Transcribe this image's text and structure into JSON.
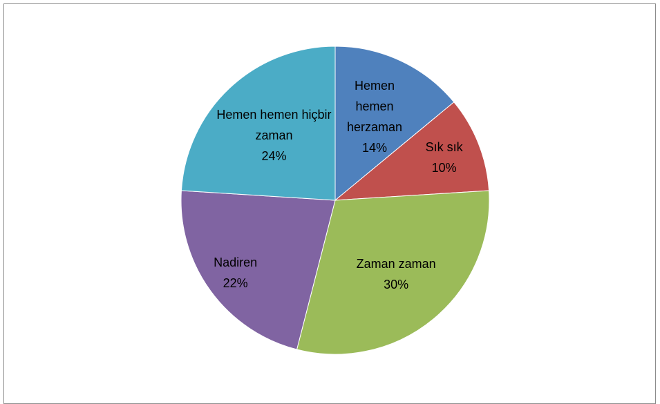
{
  "chart_data": {
    "type": "pie",
    "categories": [
      "Hemen hemen herzaman",
      "Sık sık",
      "Zaman zaman",
      "Nadiren",
      "Hemen hemen hiçbir zaman"
    ],
    "values": [
      14,
      10,
      30,
      22,
      24
    ],
    "value_labels": [
      "14%",
      "10%",
      "30%",
      "22%",
      "24%"
    ],
    "colors": [
      "#4f81bd",
      "#c0504d",
      "#9bbb59",
      "#8064a2",
      "#4bacc6"
    ]
  }
}
